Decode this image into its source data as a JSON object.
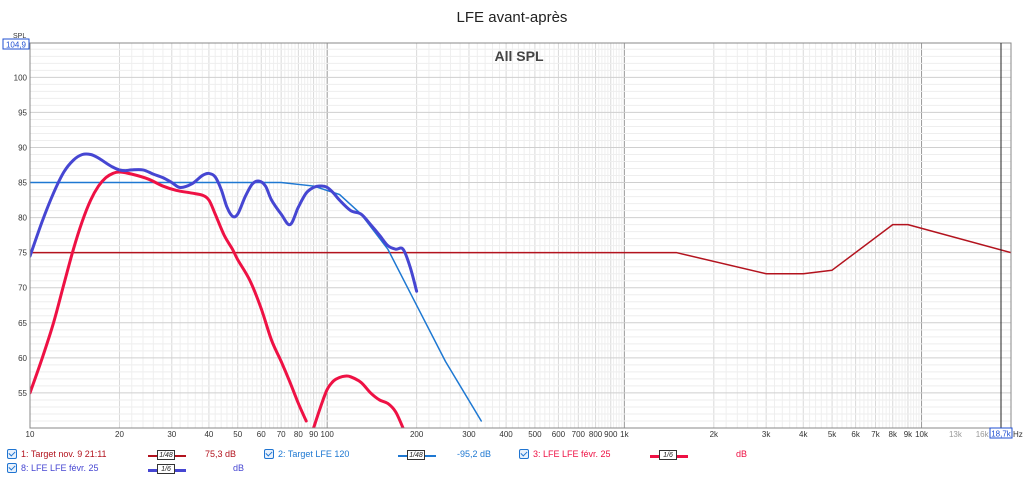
{
  "chart_data": {
    "type": "line",
    "title": "LFE avant-après",
    "subtitle": "All SPL",
    "ylabel": "SPL",
    "xlabel": "Hz",
    "xscale": "log",
    "xlim": [
      10,
      20000
    ],
    "ylim": [
      50,
      104.9
    ],
    "y_top_readout": "104,9",
    "x_cursor_readout": "18,7k",
    "x_ticks": [
      {
        "v": 10,
        "l": "10",
        "major": true
      },
      {
        "v": 20,
        "l": "20",
        "major": false
      },
      {
        "v": 30,
        "l": "30",
        "major": false
      },
      {
        "v": 40,
        "l": "40",
        "major": false
      },
      {
        "v": 50,
        "l": "50",
        "major": false
      },
      {
        "v": 60,
        "l": "60",
        "major": false
      },
      {
        "v": 70,
        "l": "70",
        "major": false
      },
      {
        "v": 80,
        "l": "80",
        "major": false
      },
      {
        "v": 90,
        "l": "90",
        "major": false
      },
      {
        "v": 100,
        "l": "100",
        "major": true
      },
      {
        "v": 200,
        "l": "200",
        "major": false
      },
      {
        "v": 300,
        "l": "300",
        "major": false
      },
      {
        "v": 400,
        "l": "400",
        "major": false
      },
      {
        "v": 500,
        "l": "500",
        "major": false
      },
      {
        "v": 600,
        "l": "600",
        "major": false
      },
      {
        "v": 700,
        "l": "700",
        "major": false
      },
      {
        "v": 800,
        "l": "800",
        "major": false
      },
      {
        "v": 900,
        "l": "900",
        "major": false
      },
      {
        "v": 1000,
        "l": "1k",
        "major": true
      },
      {
        "v": 2000,
        "l": "2k",
        "major": false
      },
      {
        "v": 3000,
        "l": "3k",
        "major": false
      },
      {
        "v": 4000,
        "l": "4k",
        "major": false
      },
      {
        "v": 5000,
        "l": "5k",
        "major": false
      },
      {
        "v": 6000,
        "l": "6k",
        "major": false
      },
      {
        "v": 7000,
        "l": "7k",
        "major": false
      },
      {
        "v": 8000,
        "l": "8k",
        "major": false
      },
      {
        "v": 9000,
        "l": "9k",
        "major": false
      },
      {
        "v": 10000,
        "l": "10k",
        "major": true
      },
      {
        "v": 13000,
        "l": "13k",
        "major": false,
        "muted": true
      },
      {
        "v": 16000,
        "l": "16k",
        "major": false,
        "muted": true
      }
    ],
    "y_ticks": [
      {
        "v": 55,
        "l": "55"
      },
      {
        "v": 60,
        "l": "60"
      },
      {
        "v": 65,
        "l": "65"
      },
      {
        "v": 70,
        "l": "70"
      },
      {
        "v": 75,
        "l": "75"
      },
      {
        "v": 80,
        "l": "80"
      },
      {
        "v": 85,
        "l": "85"
      },
      {
        "v": 90,
        "l": "90"
      },
      {
        "v": 95,
        "l": "95"
      },
      {
        "v": 100,
        "l": "100"
      }
    ],
    "grid": true,
    "legend_position": "bottom",
    "series": [
      {
        "name": "1: Target nov. 9 21:11",
        "color": "#b3131e",
        "smoothing": "1/48",
        "value_readout": "75,3 dB",
        "width": 1.5,
        "x": [
          10,
          1500,
          3000,
          4000,
          5000,
          8000,
          9000,
          20000
        ],
        "y": [
          75,
          75,
          72,
          72,
          72.5,
          79,
          79,
          75
        ]
      },
      {
        "name": "2: Target LFE 120",
        "color": "#1e78d2",
        "smoothing": "1/48",
        "value_readout": "-95,2 dB",
        "width": 1.5,
        "x": [
          10,
          30,
          50,
          70,
          90,
          110,
          130,
          160,
          200,
          250,
          330
        ],
        "y": [
          85,
          85,
          85,
          85,
          84.5,
          83.3,
          80.5,
          75.5,
          67.5,
          59.5,
          51
        ]
      },
      {
        "name": "3: LFE LFE févr. 25",
        "color": "#ee1144",
        "smoothing": "1/6",
        "value_readout": "dB",
        "width": 3,
        "x": [
          10,
          11,
          12,
          13,
          14,
          15,
          16,
          17,
          18,
          19,
          20,
          22,
          25,
          28,
          31,
          35,
          38,
          40,
          42,
          45,
          48,
          50,
          55,
          60,
          65,
          70,
          75,
          80,
          85
        ],
        "y": [
          55,
          60,
          65,
          70.5,
          75.5,
          79.5,
          82.5,
          84.5,
          85.7,
          86.3,
          86.5,
          86.2,
          85.5,
          84.5,
          83.9,
          83.5,
          83.2,
          82.5,
          80.5,
          77.5,
          75.5,
          74,
          71,
          67,
          62.5,
          59.5,
          56.5,
          53.5,
          51
        ],
        "x2": [
          90,
          95,
          100,
          105,
          110,
          115,
          120,
          130,
          140,
          150,
          160,
          170,
          180
        ],
        "y2": [
          50,
          53,
          55.5,
          56.7,
          57.2,
          57.4,
          57.3,
          56.5,
          55,
          54,
          53.5,
          52.3,
          50
        ]
      },
      {
        "name": "8: LFE LFE févr. 25",
        "color": "#4646d2",
        "smoothing": "1/6",
        "value_readout": "dB",
        "width": 3,
        "x": [
          10,
          11,
          12,
          13,
          14,
          15,
          16,
          17,
          18,
          19,
          20,
          21,
          22,
          24,
          26,
          28,
          30,
          32,
          35,
          38,
          40,
          42,
          44,
          46,
          48,
          50,
          53,
          56,
          59,
          62,
          65,
          70,
          75,
          80,
          85,
          90,
          95,
          100,
          105,
          110,
          120,
          130,
          140,
          150,
          160,
          170,
          180,
          190,
          200
        ],
        "y": [
          74.5,
          79.5,
          83.5,
          86.5,
          88.2,
          89,
          89,
          88.5,
          87.8,
          87.2,
          86.8,
          86.7,
          86.8,
          86.8,
          86.2,
          85.7,
          85,
          84.3,
          84.8,
          86,
          86.3,
          85.8,
          84,
          81.5,
          80.2,
          80.5,
          83,
          84.8,
          85.2,
          84.5,
          82.5,
          80.5,
          79,
          81.5,
          83.5,
          84.3,
          84.5,
          84.3,
          83.5,
          82.5,
          81,
          80.5,
          79,
          77.5,
          76,
          75.5,
          75.5,
          73,
          69.5
        ]
      }
    ]
  }
}
